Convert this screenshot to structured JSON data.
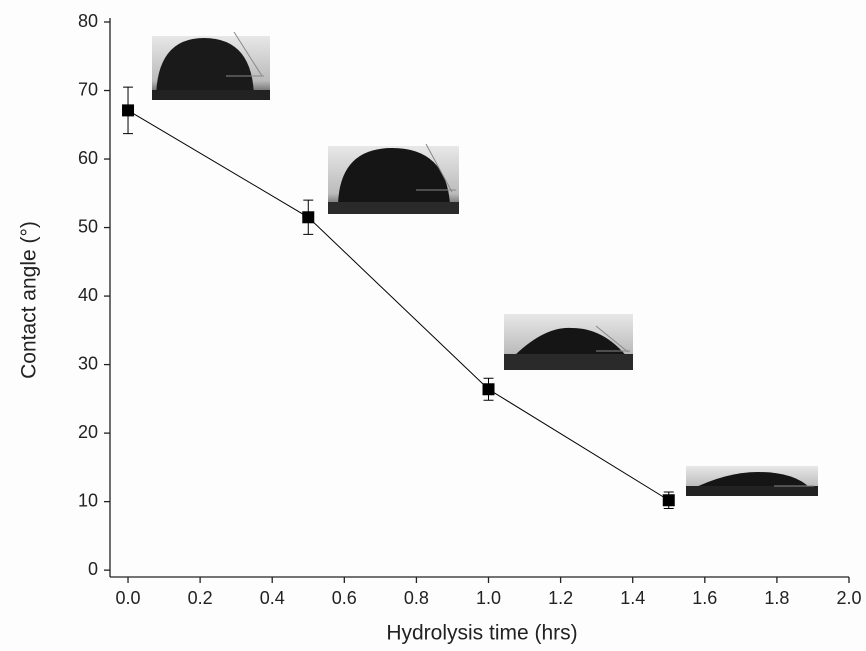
{
  "chart_data": {
    "type": "line",
    "xlabel": "Hydrolysis time (hrs)",
    "ylabel": "Contact angle (°)",
    "x": [
      0.0,
      0.5,
      1.0,
      1.5
    ],
    "values": [
      67.1,
      51.5,
      26.4,
      10.2
    ],
    "errors": [
      3.4,
      2.5,
      1.6,
      1.2
    ],
    "color": "#000000",
    "xlim": [
      -0.05,
      2.0
    ],
    "xticks": [
      {
        "value": 0,
        "label": "0.0"
      },
      {
        "value": 0.2,
        "label": "0.2"
      },
      {
        "value": 0.4,
        "label": "0.4"
      },
      {
        "value": 0.6,
        "label": "0.6"
      },
      {
        "value": 0.8,
        "label": "0.8"
      },
      {
        "value": 1.0,
        "label": "1.0"
      },
      {
        "value": 1.2,
        "label": "1.2"
      },
      {
        "value": 1.4,
        "label": "1.4"
      },
      {
        "value": 1.6,
        "label": "1.6"
      },
      {
        "value": 1.8,
        "label": "1.8"
      },
      {
        "value": 2.0,
        "label": "2.0"
      }
    ],
    "ylim": [
      -1,
      80
    ],
    "yticks": [
      0,
      10,
      20,
      30,
      40,
      50,
      60,
      70,
      80
    ]
  }
}
